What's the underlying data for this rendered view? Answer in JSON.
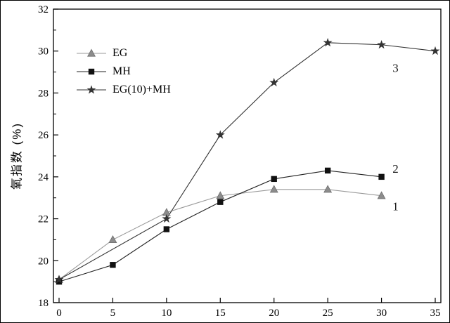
{
  "chart_data": {
    "type": "line",
    "title": "",
    "xlabel": "",
    "ylabel": "氧指数 (%)",
    "xlim": [
      0,
      35
    ],
    "ylim": [
      18,
      32
    ],
    "x_ticks": [
      0,
      5,
      10,
      15,
      20,
      25,
      30,
      35
    ],
    "y_ticks": [
      18,
      20,
      22,
      24,
      26,
      28,
      30,
      32
    ],
    "y_minor_ticks": [
      19,
      21,
      23,
      25,
      27,
      29,
      31
    ],
    "grid": false,
    "legend_position": "upper-left-inside",
    "series": [
      {
        "name": "EG",
        "marker": "triangle",
        "color": "#8c8c8c",
        "line_color": "#9a9a9a",
        "curve_label": "1",
        "x": [
          0,
          5,
          10,
          15,
          20,
          25,
          30
        ],
        "y": [
          19.1,
          21.0,
          22.3,
          23.1,
          23.4,
          23.4,
          23.1
        ]
      },
      {
        "name": "MH",
        "marker": "square",
        "color": "#111111",
        "line_color": "#222222",
        "curve_label": "2",
        "x": [
          0,
          5,
          10,
          15,
          20,
          25,
          30
        ],
        "y": [
          19.0,
          19.8,
          21.5,
          22.8,
          23.9,
          24.3,
          24.0
        ]
      },
      {
        "name": "EG(10)+MH",
        "marker": "star",
        "color": "#333333",
        "line_color": "#333333",
        "curve_label": "3",
        "x": [
          0,
          10,
          15,
          20,
          25,
          30,
          35
        ],
        "y": [
          19.1,
          22.0,
          26.0,
          28.5,
          30.4,
          30.3,
          30.0
        ]
      }
    ],
    "annotations": [
      {
        "text": "1",
        "x": 31.3,
        "y": 22.6
      },
      {
        "text": "2",
        "x": 31.3,
        "y": 24.4
      },
      {
        "text": "3",
        "x": 31.3,
        "y": 29.2
      }
    ]
  }
}
